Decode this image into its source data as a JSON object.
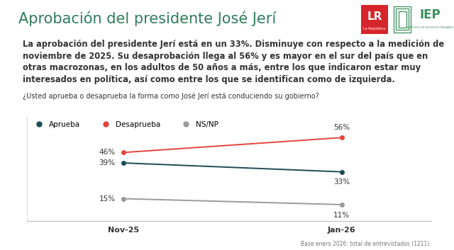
{
  "header": {
    "title": "Aprobación del presidente José Jerí",
    "logos": [
      "LR",
      "La República",
      "IEP",
      "INSTITUTO DE ESTUDIOS PERUANOS"
    ]
  },
  "text": {
    "paragraph": "La aprobación del presidente Jerí está en un 33%. Disminuye con respecto a la medición de noviembre de 2025. Su desaprobación llega al 56% y es mayor en el sur del país que en otras macrozonas, en los adultos de 50 años a más, entre los que indicaron estar muy interesados en política, así como entre los que se identifican como de izquierda.",
    "question": "¿Usted aprueba o desaprueba la forma como José Jerí está conduciendo su gobierno?",
    "footer": "Base enero 2026: total de entrevistados (1211)."
  },
  "chart_data": {
    "type": "line",
    "categories": [
      "Nov-25",
      "Jan-26"
    ],
    "series": [
      {
        "name": "Aprueba",
        "color": "#1d4b57",
        "marker": "o",
        "line_style": "solid",
        "values": [
          39,
          33
        ],
        "value_labels": [
          "39%",
          "33%"
        ]
      },
      {
        "name": "Desaprueba",
        "color": "#e3453b",
        "marker": "o",
        "line_style": "solid",
        "values": [
          46,
          56
        ],
        "value_labels": [
          "46%",
          "56%"
        ]
      },
      {
        "name": "NS/NP",
        "color": "#9a9a9a",
        "marker": "o",
        "line_style": "solid",
        "values": [
          15,
          11
        ],
        "value_labels": [
          "15%",
          "11%"
        ]
      }
    ],
    "ylim": [
      0,
      70
    ],
    "tick_labels": "x",
    "data_labels": true,
    "legend": "upper left",
    "grid": false
  }
}
